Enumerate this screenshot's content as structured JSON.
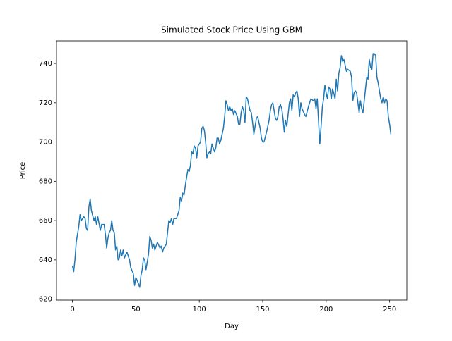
{
  "chart_data": {
    "type": "line",
    "title": "Simulated Stock Price Using GBM",
    "x_label": "Day",
    "y_label": "Price",
    "x": [
      0,
      1,
      2,
      3,
      5,
      6,
      7,
      9,
      10,
      11,
      12,
      13,
      14,
      15,
      17,
      18,
      19,
      20,
      22,
      23,
      25,
      26,
      27,
      28,
      29,
      30,
      31,
      32,
      33,
      34,
      35,
      36,
      37,
      38,
      39,
      40,
      41,
      43,
      45,
      46,
      48,
      49,
      50,
      52,
      53,
      54,
      55,
      56,
      57,
      58,
      60,
      61,
      62,
      63,
      64,
      65,
      67,
      69,
      70,
      71,
      72,
      74,
      75,
      76,
      77,
      78,
      79,
      80,
      82,
      84,
      85,
      86,
      87,
      88,
      89,
      90,
      91,
      92,
      93,
      94,
      95,
      96,
      97,
      98,
      99,
      100,
      101,
      102,
      103,
      104,
      105,
      106,
      107,
      108,
      109,
      110,
      111,
      112,
      113,
      114,
      115,
      116,
      117,
      119,
      120,
      121,
      122,
      123,
      124,
      125,
      126,
      127,
      128,
      130,
      131,
      132,
      133,
      134,
      135,
      136,
      137,
      138,
      139,
      140,
      141,
      142,
      143,
      144,
      145,
      146,
      148,
      149,
      150,
      151,
      153,
      155,
      156,
      157,
      158,
      160,
      161,
      162,
      163,
      164,
      165,
      166,
      167,
      168,
      169,
      170,
      171,
      172,
      173,
      174,
      175,
      176,
      177,
      178,
      179,
      180,
      181,
      183,
      184,
      186,
      187,
      188,
      190,
      191,
      192,
      193,
      195,
      196,
      197,
      198,
      199,
      200,
      201,
      202,
      203,
      204,
      205,
      206,
      207,
      208,
      209,
      210,
      211,
      212,
      213,
      214,
      216,
      217,
      219,
      220,
      221,
      222,
      223,
      224,
      225,
      226,
      227,
      228,
      229,
      230,
      232,
      233,
      234,
      235,
      236,
      237,
      238,
      239,
      240,
      241,
      243,
      244,
      245,
      246,
      247,
      248,
      249,
      250,
      251
    ],
    "values": [
      637,
      634,
      640,
      649,
      657,
      663,
      660,
      662,
      661,
      656,
      655,
      667,
      671,
      665,
      660,
      662,
      658,
      662,
      655,
      658,
      658,
      653,
      646,
      651,
      654,
      655,
      660,
      655,
      654,
      645,
      647,
      640,
      641,
      645,
      642,
      645,
      641,
      644,
      640,
      636,
      633,
      627,
      631,
      628,
      626,
      632,
      635,
      641,
      640,
      635,
      643,
      652,
      650,
      646,
      648,
      645,
      649,
      646,
      647,
      644,
      646,
      648,
      654,
      660,
      659,
      661,
      658,
      661,
      661,
      665,
      672,
      670,
      674,
      673,
      678,
      682,
      686,
      685,
      688,
      695,
      694,
      698,
      697,
      692,
      698,
      699,
      700,
      707,
      708,
      706,
      700,
      692,
      694,
      695,
      694,
      699,
      697,
      695,
      697,
      702,
      702,
      699,
      701,
      707,
      713,
      721,
      719,
      716,
      718,
      716,
      717,
      714,
      716,
      713,
      709,
      709,
      715,
      718,
      716,
      710,
      723,
      722,
      719,
      716,
      715,
      710,
      704,
      708,
      712,
      713,
      707,
      702,
      700,
      700,
      705,
      711,
      716,
      719,
      720,
      712,
      711,
      713,
      718,
      719,
      717,
      712,
      705,
      711,
      708,
      714,
      720,
      722,
      716,
      724,
      723,
      725,
      726,
      722,
      713,
      720,
      717,
      714,
      713,
      718,
      720,
      722,
      721,
      722,
      717,
      722,
      699,
      708,
      718,
      722,
      729,
      725,
      722,
      728,
      727,
      722,
      727,
      725,
      722,
      732,
      726,
      735,
      738,
      744,
      741,
      742,
      736,
      737,
      736,
      733,
      721,
      725,
      726,
      725,
      720,
      715,
      721,
      717,
      715,
      721,
      733,
      732,
      742,
      738,
      737,
      745,
      745,
      744,
      733,
      730,
      722,
      720,
      723,
      720,
      722,
      721,
      713,
      709,
      704
    ],
    "color": "#1f77b4",
    "xlim": [
      -12.55,
      263.55
    ],
    "ylim": [
      619.5,
      751.5
    ],
    "xticks": [
      0,
      50,
      100,
      150,
      200,
      250
    ],
    "yticks": [
      620,
      640,
      660,
      680,
      700,
      720,
      740
    ]
  }
}
